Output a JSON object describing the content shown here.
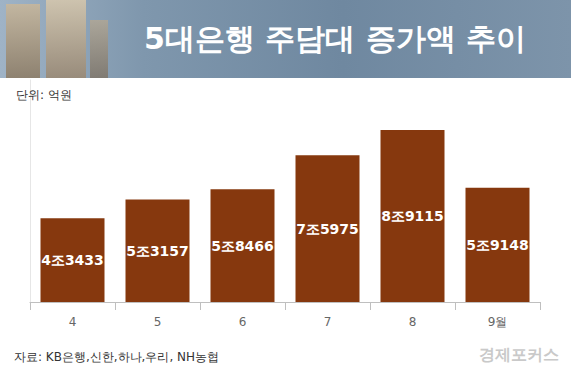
{
  "chart_data": {
    "type": "bar",
    "title": "5대은행 주담대 증가액 추이",
    "ylabel": "단위: 억원",
    "categories": [
      "4",
      "5",
      "6",
      "7",
      "8",
      "9월"
    ],
    "values": [
      43433,
      53157,
      58466,
      75975,
      89115,
      59148
    ],
    "value_labels": [
      "4조3433",
      "5조3157",
      "5조8466",
      "7조5975",
      "8조9115",
      "5조9148"
    ],
    "data_labels": true,
    "color": "#86380e",
    "ylim": [
      0,
      115000
    ],
    "yticks": [
      0,
      115000
    ],
    "grid": false,
    "tick_labels": "x",
    "annotations": [
      "자료: KB은행,신한,하나,우리, NH농협",
      "경제포커스"
    ]
  }
}
